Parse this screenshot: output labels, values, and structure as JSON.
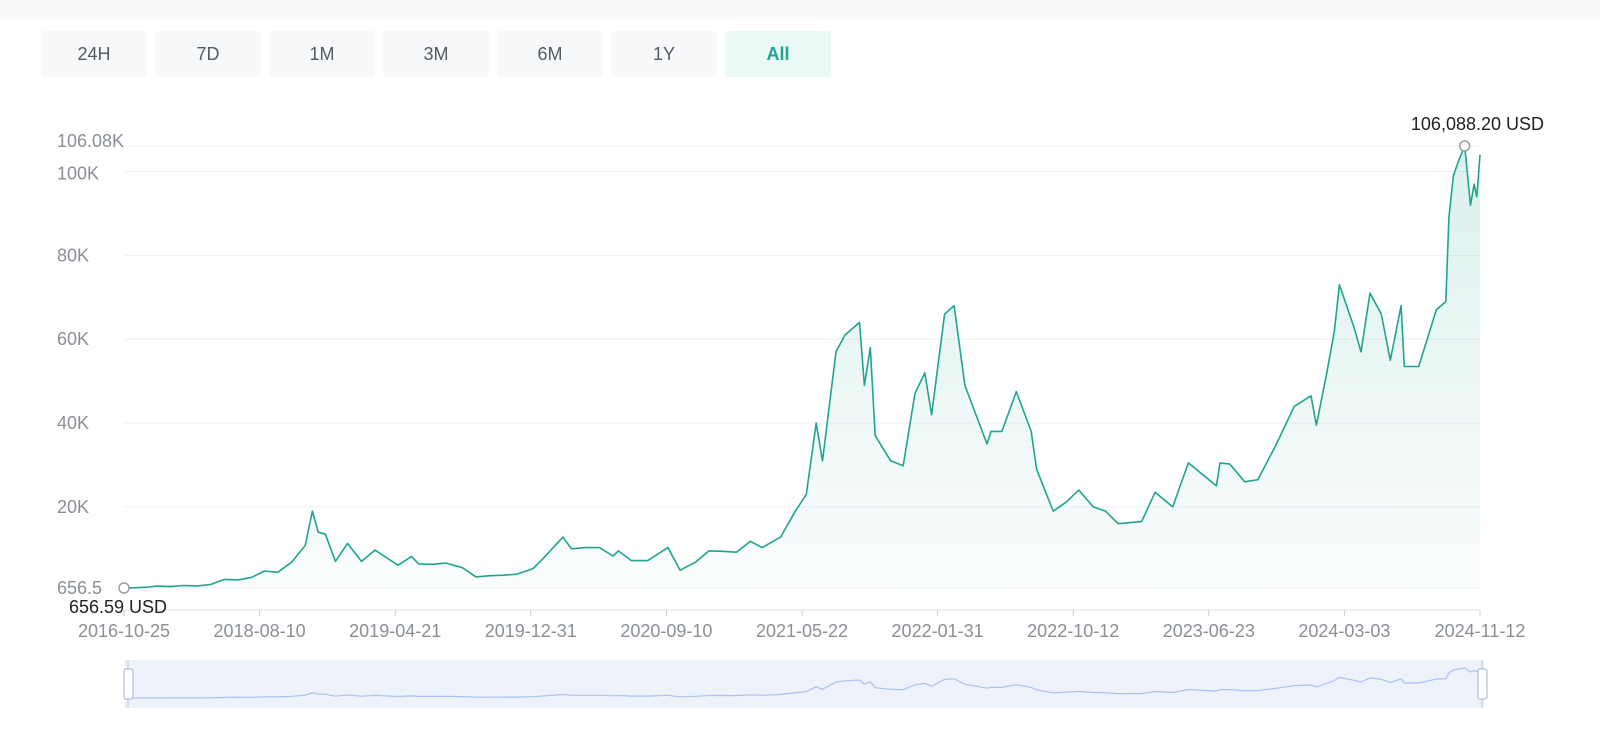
{
  "range_tabs": [
    {
      "label": "24H",
      "active": false
    },
    {
      "label": "7D",
      "active": false
    },
    {
      "label": "1M",
      "active": false
    },
    {
      "label": "3M",
      "active": false
    },
    {
      "label": "6M",
      "active": false
    },
    {
      "label": "1Y",
      "active": false
    },
    {
      "label": "All",
      "active": true
    }
  ],
  "colors": {
    "line": "#1fa58f",
    "area": "#1fa58f",
    "grid": "#eef0f3",
    "axis_text": "#8a8f97",
    "annotation_text": "#222222",
    "navigator_bg": "#eef3fb",
    "navigator_line": "#a9c1ef"
  },
  "chart_data": {
    "type": "area",
    "title": "",
    "xlabel": "",
    "ylabel": "",
    "y_tick_labels": [
      {
        "value": 656.5,
        "label": "656.5"
      },
      {
        "value": 20000,
        "label": "20K"
      },
      {
        "value": 40000,
        "label": "40K"
      },
      {
        "value": 60000,
        "label": "60K"
      },
      {
        "value": 80000,
        "label": "80K"
      },
      {
        "value": 100000,
        "label": "100K"
      },
      {
        "value": 106080,
        "label": "106.08K"
      }
    ],
    "x_tick_labels": [
      "2016-10-25",
      "2018-08-10",
      "2019-04-21",
      "2019-12-31",
      "2020-09-10",
      "2021-05-22",
      "2022-01-31",
      "2022-10-12",
      "2023-06-23",
      "2024-03-03",
      "2024-11-12"
    ],
    "min_annotation": {
      "date": "2016-10-25",
      "value": 656.59,
      "label": "656.59 USD"
    },
    "max_annotation": {
      "date": "2024-12-17",
      "value": 106088.2,
      "label": "106,088.20 USD"
    },
    "grid": true,
    "navigator": true,
    "series": [
      {
        "points": [
          [
            "2016-10-25",
            656.59
          ],
          [
            "2016-11-20",
            740
          ],
          [
            "2016-12-20",
            900
          ],
          [
            "2017-01-05",
            1100
          ],
          [
            "2017-02-05",
            1000
          ],
          [
            "2017-03-05",
            1250
          ],
          [
            "2017-04-05",
            1150
          ],
          [
            "2017-05-05",
            1500
          ],
          [
            "2017-06-05",
            2700
          ],
          [
            "2017-07-05",
            2600
          ],
          [
            "2017-08-05",
            3200
          ],
          [
            "2017-09-01",
            4700
          ],
          [
            "2017-10-01",
            4400
          ],
          [
            "2017-11-01",
            6800
          ],
          [
            "2017-12-01",
            10800
          ],
          [
            "2017-12-17",
            19000
          ],
          [
            "2017-12-30",
            14000
          ],
          [
            "2018-01-15",
            13500
          ],
          [
            "2018-02-06",
            7000
          ],
          [
            "2018-03-05",
            11300
          ],
          [
            "2018-04-05",
            7000
          ],
          [
            "2018-05-05",
            9700
          ],
          [
            "2018-06-25",
            6100
          ],
          [
            "2018-07-25",
            8200
          ],
          [
            "2018-08-10",
            6400
          ],
          [
            "2018-09-10",
            6300
          ],
          [
            "2018-10-10",
            6600
          ],
          [
            "2018-11-15",
            5500
          ],
          [
            "2018-12-15",
            3300
          ],
          [
            "2019-01-15",
            3600
          ],
          [
            "2019-02-15",
            3700
          ],
          [
            "2019-03-15",
            3950
          ],
          [
            "2019-04-21",
            5300
          ],
          [
            "2019-05-15",
            7900
          ],
          [
            "2019-06-26",
            12800
          ],
          [
            "2019-07-15",
            10000
          ],
          [
            "2019-08-15",
            10300
          ],
          [
            "2019-09-15",
            10300
          ],
          [
            "2019-10-15",
            8300
          ],
          [
            "2019-10-27",
            9500
          ],
          [
            "2019-11-25",
            7200
          ],
          [
            "2019-12-31",
            7200
          ],
          [
            "2020-02-14",
            10300
          ],
          [
            "2020-03-12",
            4900
          ],
          [
            "2020-04-15",
            6800
          ],
          [
            "2020-05-15",
            9500
          ],
          [
            "2020-06-15",
            9400
          ],
          [
            "2020-07-15",
            9200
          ],
          [
            "2020-08-15",
            11800
          ],
          [
            "2020-09-10",
            10300
          ],
          [
            "2020-10-21",
            12800
          ],
          [
            "2020-11-20",
            18500
          ],
          [
            "2020-12-17",
            23000
          ],
          [
            "2021-01-08",
            40000
          ],
          [
            "2021-01-22",
            31000
          ],
          [
            "2021-02-21",
            57000
          ],
          [
            "2021-03-13",
            61000
          ],
          [
            "2021-04-14",
            64000
          ],
          [
            "2021-04-25",
            49000
          ],
          [
            "2021-05-08",
            58000
          ],
          [
            "2021-05-19",
            37000
          ],
          [
            "2021-06-22",
            31000
          ],
          [
            "2021-07-20",
            29800
          ],
          [
            "2021-08-15",
            47000
          ],
          [
            "2021-09-06",
            52000
          ],
          [
            "2021-09-21",
            42000
          ],
          [
            "2021-10-20",
            66000
          ],
          [
            "2021-11-10",
            68000
          ],
          [
            "2021-12-04",
            49000
          ],
          [
            "2022-01-22",
            35000
          ],
          [
            "2022-01-31",
            38000
          ],
          [
            "2022-02-24",
            38000
          ],
          [
            "2022-03-28",
            47500
          ],
          [
            "2022-04-30",
            38000
          ],
          [
            "2022-05-12",
            29000
          ],
          [
            "2022-06-18",
            19000
          ],
          [
            "2022-07-15",
            21000
          ],
          [
            "2022-08-14",
            24000
          ],
          [
            "2022-09-15",
            20000
          ],
          [
            "2022-10-12",
            19000
          ],
          [
            "2022-11-09",
            16000
          ],
          [
            "2022-12-31",
            16500
          ],
          [
            "2023-01-30",
            23500
          ],
          [
            "2023-03-10",
            20000
          ],
          [
            "2023-04-14",
            30500
          ],
          [
            "2023-06-15",
            25000
          ],
          [
            "2023-06-23",
            30500
          ],
          [
            "2023-07-15",
            30200
          ],
          [
            "2023-08-17",
            26000
          ],
          [
            "2023-09-15",
            26500
          ],
          [
            "2023-10-24",
            34500
          ],
          [
            "2023-12-05",
            44000
          ],
          [
            "2024-01-11",
            46500
          ],
          [
            "2024-01-23",
            39500
          ],
          [
            "2024-02-15",
            52000
          ],
          [
            "2024-03-03",
            62000
          ],
          [
            "2024-03-14",
            73000
          ],
          [
            "2024-04-15",
            63000
          ],
          [
            "2024-05-01",
            57000
          ],
          [
            "2024-05-21",
            71000
          ],
          [
            "2024-06-15",
            66000
          ],
          [
            "2024-07-05",
            55000
          ],
          [
            "2024-07-29",
            68000
          ],
          [
            "2024-08-05",
            53500
          ],
          [
            "2024-09-06",
            53500
          ],
          [
            "2024-10-15",
            67000
          ],
          [
            "2024-11-05",
            69000
          ],
          [
            "2024-11-12",
            89000
          ],
          [
            "2024-11-22",
            99000
          ],
          [
            "2024-12-05",
            103000
          ],
          [
            "2024-12-17",
            106088.2
          ],
          [
            "2024-12-30",
            92000
          ],
          [
            "2025-01-07",
            97000
          ],
          [
            "2025-01-13",
            94000
          ],
          [
            "2025-01-20",
            104000
          ]
        ]
      }
    ]
  }
}
